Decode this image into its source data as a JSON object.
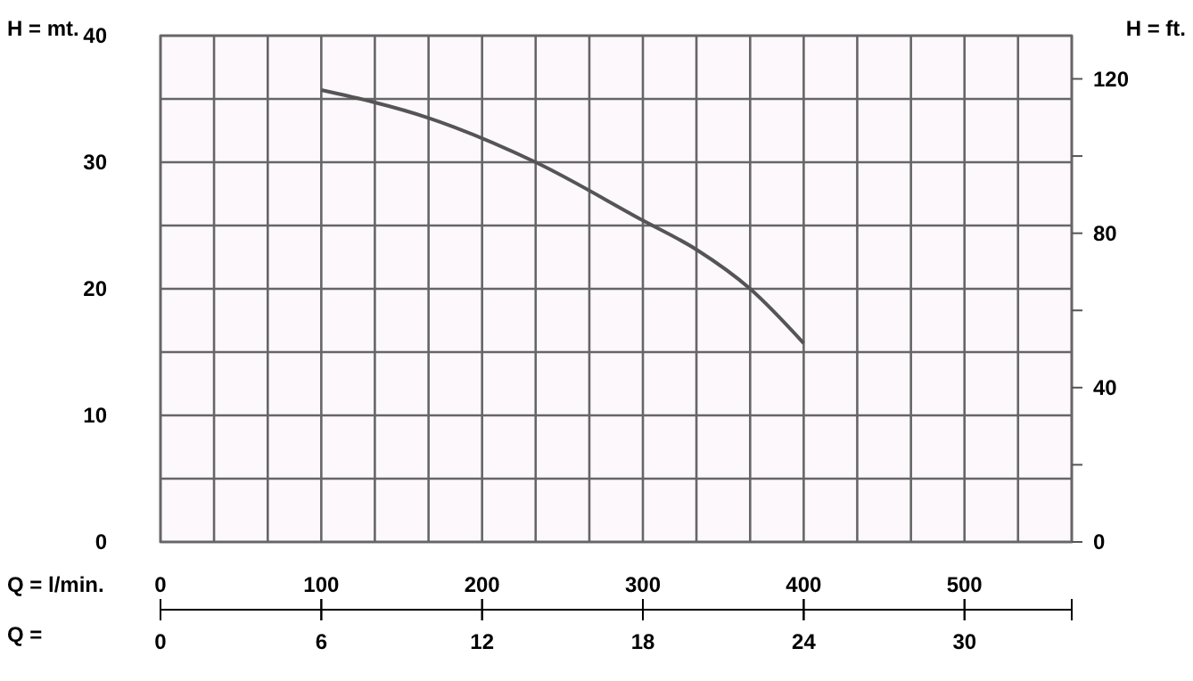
{
  "chart_data": {
    "type": "line",
    "xlabel": "Q = l/min.",
    "ylabel": "H = mt.",
    "y2label": "H  =  ft.",
    "x2label": "Q =",
    "x": [
      100,
      166.7,
      233.3,
      300,
      333.3,
      366.7,
      400
    ],
    "series": [
      {
        "color": "#555555",
        "values": [
          35.7,
          33.5,
          30.0,
          25.4,
          23.1,
          20.0,
          15.7
        ]
      }
    ],
    "xlim": [
      0,
      566.7
    ],
    "xticks": [
      0,
      {
        "value": 33.3,
        "label": null
      },
      {
        "value": 66.7,
        "label": null
      },
      100,
      {
        "value": 133.3,
        "label": null
      },
      {
        "value": 166.7,
        "label": null
      },
      200,
      {
        "value": 233.3,
        "label": null
      },
      {
        "value": 266.7,
        "label": null
      },
      300,
      {
        "value": 333.3,
        "label": null
      },
      {
        "value": 366.7,
        "label": null
      },
      400,
      {
        "value": 433.3,
        "label": null
      },
      {
        "value": 466.7,
        "label": null
      },
      500,
      {
        "value": 533.3,
        "label": null
      },
      {
        "value": 566.7,
        "label": null
      }
    ],
    "x2lim": [
      0,
      34
    ],
    "x2ticks": [
      0,
      6,
      12,
      18,
      24,
      30,
      {
        "value": 34,
        "label": null
      }
    ],
    "ylim": [
      0,
      40
    ],
    "yticks": [
      0,
      {
        "value": 5,
        "label": null
      },
      10,
      {
        "value": 15,
        "label": null
      },
      20,
      {
        "value": 25,
        "label": null
      },
      30,
      {
        "value": 35,
        "label": null
      },
      40
    ],
    "y2lim": [
      0,
      131.2
    ],
    "y2ticks": [
      0,
      {
        "value": 20,
        "label": null
      },
      40,
      {
        "value": 60,
        "label": null
      },
      80,
      {
        "value": 100,
        "label": null
      },
      120
    ],
    "grid": true,
    "marker": "none",
    "line_style": "solid"
  }
}
